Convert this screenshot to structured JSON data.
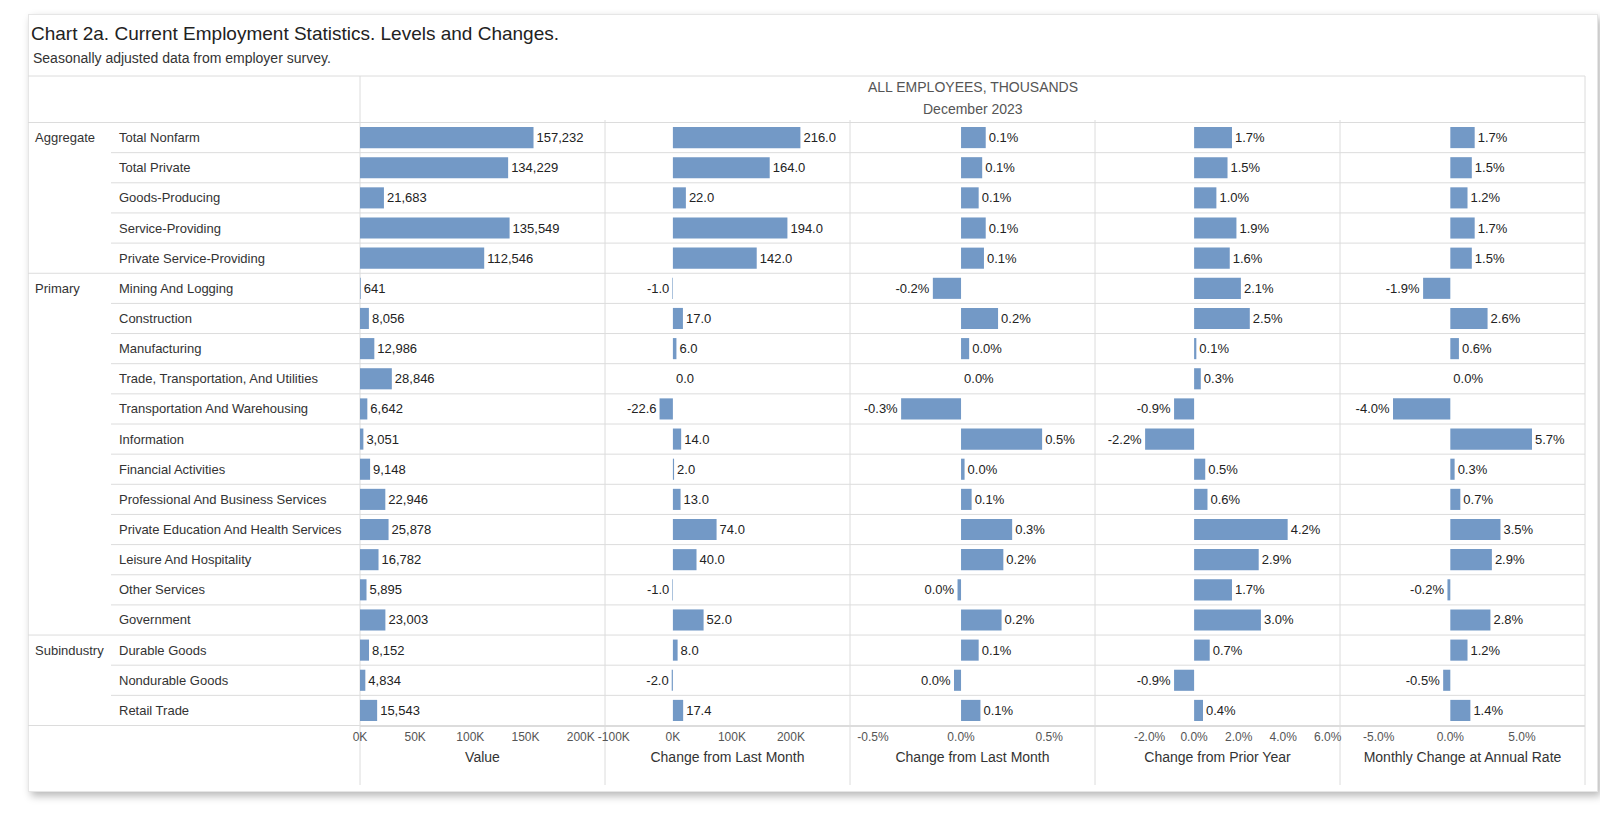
{
  "title": "Chart 2a. Current Employment Statistics. Levels and Changes.",
  "subtitle": "Seasonally adjusted data from employer survey.",
  "header": [
    "ALL EMPLOYEES, THOUSANDS",
    "December 2023"
  ],
  "groups": [
    "Aggregate",
    null,
    null,
    null,
    null,
    "Primary",
    null,
    null,
    null,
    null,
    null,
    null,
    null,
    null,
    null,
    null,
    null,
    "Subindustry",
    null,
    null
  ],
  "chart_data": [
    {
      "type": "bar",
      "orientation": "horizontal",
      "x_label": "Value",
      "categories": [
        "Total Nonfarm",
        "Total Private",
        "Goods-Producing",
        "Service-Providing",
        "Private Service-Providing",
        "Mining And Logging",
        "Construction",
        "Manufacturing",
        "Trade, Transportation, And Utilities",
        "Transportation And Warehousing",
        "Information",
        "Financial Activities",
        "Professional And Business Services",
        "Private Education And Health Services",
        "Leisure And Hospitality",
        "Other Services",
        "Government",
        "Durable Goods",
        "Nondurable Goods",
        "Retail Trade"
      ],
      "values": [
        157232,
        134229,
        21683,
        135549,
        112546,
        641,
        8056,
        12986,
        28846,
        6642,
        3051,
        9148,
        22946,
        25878,
        16782,
        5895,
        23003,
        8152,
        4834,
        15543
      ],
      "value_labels": [
        "157,232",
        "134,229",
        "21,683",
        "135,549",
        "112,546",
        "641",
        "8,056",
        "12,986",
        "28,846",
        "6,642",
        "3,051",
        "9,148",
        "22,946",
        "25,878",
        "16,782",
        "5,895",
        "23,003",
        "8,152",
        "4,834",
        "15,543"
      ],
      "color": "#7399c6",
      "xlim": [
        0,
        222000
      ],
      "xticks": [
        {
          "value": 0,
          "label": "0K"
        },
        {
          "value": 50000,
          "label": "50K"
        },
        {
          "value": 100000,
          "label": "100K"
        },
        {
          "value": 150000,
          "label": "150K"
        },
        {
          "value": 200000,
          "label": "200K"
        }
      ],
      "data_labels": true,
      "tick_labels": "x",
      "grid": false
    },
    {
      "type": "bar",
      "orientation": "horizontal",
      "x_label": "Change from Last Month",
      "categories": [
        "Total Nonfarm",
        "Total Private",
        "Goods-Producing",
        "Service-Providing",
        "Private Service-Providing",
        "Mining And Logging",
        "Construction",
        "Manufacturing",
        "Trade, Transportation, And Utilities",
        "Transportation And Warehousing",
        "Information",
        "Financial Activities",
        "Professional And Business Services",
        "Private Education And Health Services",
        "Leisure And Hospitality",
        "Other Services",
        "Government",
        "Durable Goods",
        "Nondurable Goods",
        "Retail Trade"
      ],
      "values": [
        216,
        164,
        22,
        194,
        142,
        -1,
        17,
        6,
        0,
        -22.6,
        14,
        2,
        13,
        74,
        40,
        -1,
        52,
        8,
        -2,
        17.4
      ],
      "value_labels": [
        "216.0",
        "164.0",
        "22.0",
        "194.0",
        "142.0",
        "-1.0",
        "17.0",
        "6.0",
        "0.0",
        "-22.6",
        "14.0",
        "2.0",
        "13.0",
        "74.0",
        "40.0",
        "-1.0",
        "52.0",
        "8.0",
        "-2.0",
        "17.4"
      ],
      "color": "#7399c6",
      "xlim": [
        -115,
        300
      ],
      "xticks": [
        {
          "value": -100,
          "label": "-100K"
        },
        {
          "value": 0,
          "label": "0K"
        },
        {
          "value": 100,
          "label": "100K"
        },
        {
          "value": 200,
          "label": "200K"
        }
      ],
      "data_labels": true,
      "tick_labels": "x",
      "grid": false
    },
    {
      "type": "bar",
      "orientation": "horizontal",
      "x_label": "Change from Last Month",
      "categories": [
        "Total Nonfarm",
        "Total Private",
        "Goods-Producing",
        "Service-Providing",
        "Private Service-Providing",
        "Mining And Logging",
        "Construction",
        "Manufacturing",
        "Trade, Transportation, And Utilities",
        "Transportation And Warehousing",
        "Information",
        "Financial Activities",
        "Professional And Business Services",
        "Private Education And Health Services",
        "Leisure And Hospitality",
        "Other Services",
        "Government",
        "Durable Goods",
        "Nondurable Goods",
        "Retail Trade"
      ],
      "values": [
        0.14,
        0.12,
        0.1,
        0.14,
        0.13,
        -0.16,
        0.21,
        0.046,
        0,
        -0.34,
        0.46,
        0.02,
        0.06,
        0.29,
        0.24,
        -0.02,
        0.23,
        0.1,
        -0.04,
        0.11
      ],
      "value_labels": [
        "0.1%",
        "0.1%",
        "0.1%",
        "0.1%",
        "0.1%",
        "-0.2%",
        "0.2%",
        "0.0%",
        "0.0%",
        "-0.3%",
        "0.5%",
        "0.0%",
        "0.1%",
        "0.3%",
        "0.2%",
        "0.0%",
        "0.2%",
        "0.1%",
        "0.0%",
        "0.1%"
      ],
      "color": "#7399c6",
      "xlim": [
        -0.63,
        0.76
      ],
      "xticks": [
        {
          "value": -0.5,
          "label": "-0.5%"
        },
        {
          "value": 0,
          "label": "0.0%"
        },
        {
          "value": 0.5,
          "label": "0.5%"
        }
      ],
      "data_labels": true,
      "tick_labels": "x",
      "grid": false
    },
    {
      "type": "bar",
      "orientation": "horizontal",
      "x_label": "Change from Prior Year",
      "categories": [
        "Total Nonfarm",
        "Total Private",
        "Goods-Producing",
        "Service-Providing",
        "Private Service-Providing",
        "Mining And Logging",
        "Construction",
        "Manufacturing",
        "Trade, Transportation, And Utilities",
        "Transportation And Warehousing",
        "Information",
        "Financial Activities",
        "Professional And Business Services",
        "Private Education And Health Services",
        "Leisure And Hospitality",
        "Other Services",
        "Government",
        "Durable Goods",
        "Nondurable Goods",
        "Retail Trade"
      ],
      "values": [
        1.7,
        1.5,
        1.0,
        1.9,
        1.6,
        2.1,
        2.5,
        0.1,
        0.3,
        -0.9,
        -2.2,
        0.5,
        0.6,
        4.2,
        2.9,
        1.7,
        3.0,
        0.7,
        -0.9,
        0.4
      ],
      "value_labels": [
        "1.7%",
        "1.5%",
        "1.0%",
        "1.9%",
        "1.6%",
        "2.1%",
        "2.5%",
        "0.1%",
        "0.3%",
        "-0.9%",
        "-2.2%",
        "0.5%",
        "0.6%",
        "4.2%",
        "2.9%",
        "1.7%",
        "3.0%",
        "0.7%",
        "-0.9%",
        "0.4%"
      ],
      "color": "#7399c6",
      "xlim": [
        -4.45,
        6.55
      ],
      "xticks": [
        {
          "value": -2,
          "label": "-2.0%"
        },
        {
          "value": 0,
          "label": "0.0%"
        },
        {
          "value": 2,
          "label": "2.0%"
        },
        {
          "value": 4,
          "label": "4.0%"
        },
        {
          "value": 6,
          "label": "6.0%"
        }
      ],
      "data_labels": true,
      "tick_labels": "x",
      "grid": false
    },
    {
      "type": "bar",
      "orientation": "horizontal",
      "x_label": "Monthly Change at Annual Rate",
      "categories": [
        "Total Nonfarm",
        "Total Private",
        "Goods-Producing",
        "Service-Providing",
        "Private Service-Providing",
        "Mining And Logging",
        "Construction",
        "Manufacturing",
        "Trade, Transportation, And Utilities",
        "Transportation And Warehousing",
        "Information",
        "Financial Activities",
        "Professional And Business Services",
        "Private Education And Health Services",
        "Leisure And Hospitality",
        "Other Services",
        "Government",
        "Durable Goods",
        "Nondurable Goods",
        "Retail Trade"
      ],
      "values": [
        1.7,
        1.5,
        1.2,
        1.7,
        1.5,
        -1.9,
        2.6,
        0.6,
        0.0,
        -4.0,
        5.7,
        0.3,
        0.7,
        3.5,
        2.9,
        -0.2,
        2.8,
        1.2,
        -0.5,
        1.4
      ],
      "value_labels": [
        "1.7%",
        "1.5%",
        "1.2%",
        "1.7%",
        "1.5%",
        "-1.9%",
        "2.6%",
        "0.6%",
        "0.0%",
        "-4.0%",
        "5.7%",
        "0.3%",
        "0.7%",
        "3.5%",
        "2.9%",
        "-0.2%",
        "2.8%",
        "1.2%",
        "-0.5%",
        "1.4%"
      ],
      "color": "#7399c6",
      "xlim": [
        -7.7,
        9.4
      ],
      "xticks": [
        {
          "value": -5,
          "label": "-5.0%"
        },
        {
          "value": 0,
          "label": "0.0%"
        },
        {
          "value": 5,
          "label": "5.0%"
        }
      ],
      "data_labels": true,
      "tick_labels": "x",
      "grid": false
    }
  ]
}
